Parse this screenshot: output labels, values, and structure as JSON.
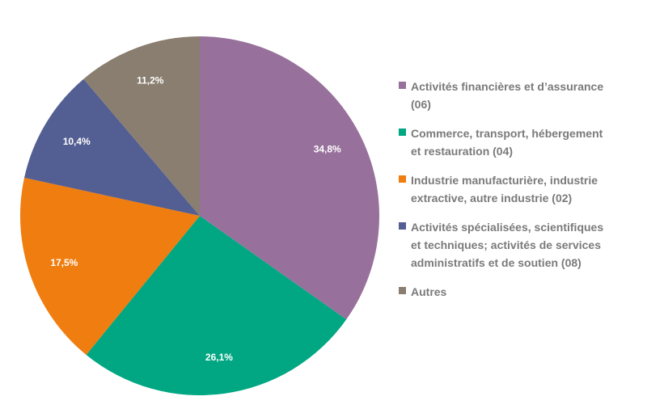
{
  "chart_data": {
    "type": "pie",
    "title": "",
    "legend_position": "right",
    "slices": [
      {
        "label": "Activités financières et d’assurance\n(06)",
        "value": 34.8,
        "value_label": "34,8%",
        "color": "#98709c"
      },
      {
        "label": "Commerce, transport, hébergement\net restauration (04)",
        "value": 26.1,
        "value_label": "26,1%",
        "color": "#00a782"
      },
      {
        "label": "Industrie manufacturière, industrie\nextractive, autre industrie (02)",
        "value": 17.5,
        "value_label": "17,5%",
        "color": "#ef7d0f"
      },
      {
        "label": "Activités spécialisées, scientifiques\net techniques; activités de services\nadministratifs et de soutien (08)",
        "value": 10.4,
        "value_label": "10,4%",
        "color": "#535e92"
      },
      {
        "label": "Autres",
        "value": 11.2,
        "value_label": "11,2%",
        "color": "#897e6f"
      }
    ]
  }
}
